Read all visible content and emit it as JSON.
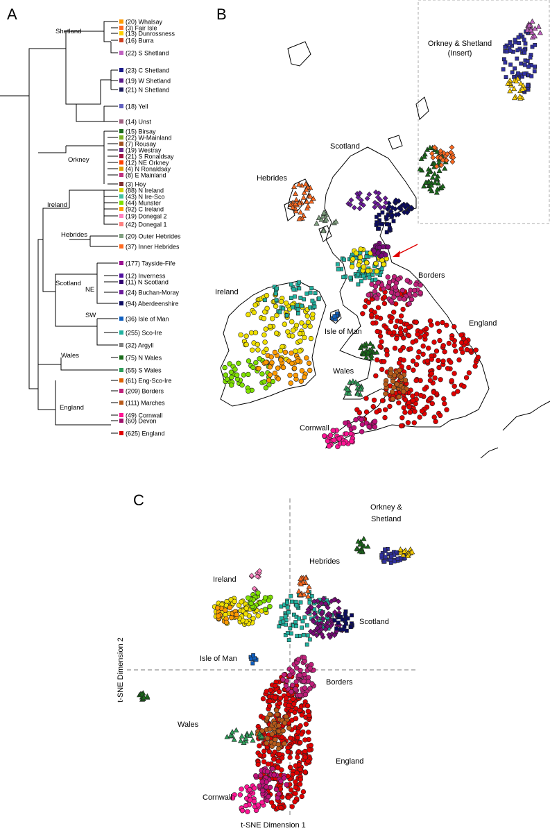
{
  "panels": {
    "a": "A",
    "b": "B",
    "c": "C"
  },
  "colors": {
    "england": "#e00000",
    "borders": "#c0207a",
    "cornwall": "#ff1493",
    "wales_n": "#1a6b1a",
    "wales_s": "#2e9e5a",
    "marches": "#b85a1a",
    "ireland": "#f0e000",
    "ireland_green": "#7ee000",
    "ireland_orange": "#ff9a00",
    "scotland": "#7a0a7a",
    "sco_ire": "#20b2a0",
    "aberdeen": "#0a0a60",
    "isle_of_man": "#1060c0",
    "hebrides": "#ff6a20",
    "shetland": "#3030a0"
  },
  "dendrogram": {
    "group_labels": {
      "shetland": "Shetland",
      "orkney": "Orkney",
      "ireland": "Ireland",
      "hebrides": "Hebrides",
      "scotland": "Scotland",
      "ne": "NE",
      "sw": "SW",
      "wales": "Wales",
      "england": "England"
    },
    "leaves": [
      "(20) Whalsay",
      "(3) Fair Isle",
      "(13) Dunrossness",
      "(16) Burra",
      "(22) S Shetland",
      "(23) C Shetland",
      "(19) W Shetland",
      "(21) N Shetland",
      "(18) Yell",
      "(14) Unst",
      "(15) Birsay",
      "(22) W-Mainland",
      "(7) Rousay",
      "(19) Westray",
      "(21) S Ronaldsay",
      "(12) NE Orkney",
      "(4) N Ronaldsay",
      "(8) E Mainland",
      "(3) Hoy",
      "(88) N Ireland",
      "(43) N Ire-Sco",
      "(44) Munster",
      "(92) C Ireland",
      "(19) Donegal 2",
      "(42) Donegal 1",
      "(20) Outer Hebrides",
      "(37) Inner Hebrides",
      "(177) Tayside-Fife",
      "(12) Inverness",
      "(11) N Scotland",
      "(24) Buchan-Moray",
      "(94) Aberdeenshire",
      "(36) Isle of Man",
      "(255) Sco-Ire",
      "(32) Argyll",
      "(75) N Wales",
      "(55) S Wales",
      "(61) Eng-Sco-Ire",
      "(209) Borders",
      "(111) Marches",
      "(49) Cornwall",
      "(60) Devon",
      "(625) England"
    ]
  },
  "map": {
    "labels": {
      "orkney_shetland_insert": "Orkney & Shetland",
      "insert": "(Insert)",
      "scotland": "Scotland",
      "hebrides": "Hebrides",
      "ireland": "Ireland",
      "borders": "Borders",
      "england": "England",
      "isle_of_man": "Isle of Man",
      "wales": "Wales",
      "cornwall": "Cornwall"
    }
  },
  "tsne": {
    "labels": {
      "orkney": "Orkney &",
      "shetland": "Shetland",
      "hebrides": "Hebrides",
      "ireland": "Ireland",
      "scotland": "Scotland",
      "isle_of_man": "Isle of Man",
      "borders": "Borders",
      "wales": "Wales",
      "england": "England",
      "cornwall": "Cornwall"
    },
    "xlabel": "t-SNE Dimension 1",
    "ylabel": "t-SNE Dimension 2"
  }
}
